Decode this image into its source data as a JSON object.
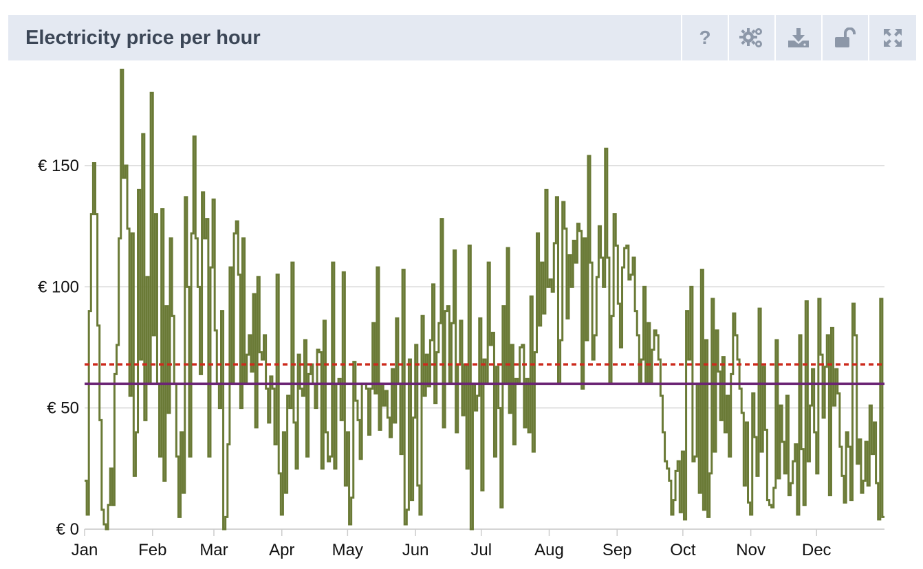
{
  "panel": {
    "title": "Electricity price per hour",
    "toolbar": {
      "help_label": "?",
      "buttons": [
        "help-icon",
        "settings-gears-icon",
        "download-icon",
        "unlock-icon",
        "expand-icon"
      ]
    }
  },
  "colors": {
    "header_bg": "#e4e9f2",
    "title": "#3b4656",
    "icon": "#8c97a8",
    "series_price": "#6a7a36",
    "series_average": "#6b2474",
    "series_reference": "#cc2a1c",
    "grid": "#d6d6d6"
  },
  "chart_data": {
    "type": "line",
    "step": true,
    "title": "",
    "xlabel": "",
    "ylabel": "",
    "unit_prefix": "€ ",
    "ylim": [
      0,
      190
    ],
    "yticks": [
      0,
      50,
      100,
      150
    ],
    "ytick_labels": [
      "€ 0",
      "€ 50",
      "€ 100",
      "€ 150"
    ],
    "grid": true,
    "x_range_days": [
      0,
      365
    ],
    "x_ticks": [
      {
        "label": "Jan",
        "day": 0
      },
      {
        "label": "Feb",
        "day": 31
      },
      {
        "label": "Mar",
        "day": 59
      },
      {
        "label": "Apr",
        "day": 90
      },
      {
        "label": "May",
        "day": 120
      },
      {
        "label": "Jun",
        "day": 151
      },
      {
        "label": "Jul",
        "day": 181
      },
      {
        "label": "Aug",
        "day": 212
      },
      {
        "label": "Sep",
        "day": 243
      },
      {
        "label": "Oct",
        "day": 273
      },
      {
        "label": "Nov",
        "day": 304
      },
      {
        "label": "Dec",
        "day": 334
      }
    ],
    "series": [
      {
        "style": "step",
        "values": [
          20,
          6,
          90,
          130,
          151,
          130,
          84,
          45,
          8,
          2,
          0,
          10,
          25,
          10,
          64,
          76,
          120,
          190,
          145,
          150,
          124,
          55,
          122,
          22,
          40,
          140,
          70,
          163,
          45,
          104,
          60,
          180,
          80,
          130,
          60,
          30,
          132,
          20,
          92,
          48,
          120,
          88,
          60,
          30,
          5,
          40,
          15,
          137,
          100,
          30,
          122,
          162,
          120,
          100,
          64,
          139,
          120,
          128,
          30,
          108,
          136,
          82,
          60,
          50,
          90,
          0,
          5,
          35,
          108,
          60,
          122,
          127,
          105,
          50,
          120,
          60,
          72,
          80,
          65,
          97,
          42,
          104,
          73,
          70,
          80,
          58,
          44,
          63,
          58,
          35,
          105,
          23,
          6,
          40,
          15,
          55,
          50,
          110,
          44,
          25,
          72,
          58,
          55,
          78,
          30,
          64,
          68,
          60,
          50,
          74,
          73,
          25,
          86,
          40,
          28,
          30,
          110,
          25,
          60,
          62,
          45,
          106,
          18,
          40,
          2,
          13,
          69,
          53,
          45,
          29,
          60,
          60,
          58,
          39,
          58,
          85,
          56,
          108,
          41,
          60,
          51,
          57,
          46,
          38,
          66,
          44,
          87,
          60,
          31,
          107,
          2,
          8,
          70,
          12,
          46,
          76,
          18,
          6,
          88,
          55,
          72,
          59,
          78,
          101,
          52,
          73,
          85,
          128,
          42,
          90,
          92,
          60,
          85,
          115,
          40,
          68,
          86,
          47,
          68,
          25,
          117,
          0,
          60,
          49,
          55,
          87,
          16,
          70,
          60,
          110,
          76,
          81,
          30,
          67,
          50,
          9,
          92,
          60,
          116,
          48,
          76,
          35,
          62,
          60,
          75,
          76,
          42,
          62,
          40,
          96,
          32,
          73,
          122,
          84,
          110,
          89,
          140,
          100,
          103,
          98,
          118,
          137,
          60,
          78,
          135,
          124,
          87,
          113,
          100,
          119,
          110,
          126,
          123,
          58,
          120,
          78,
          154,
          110,
          70,
          80,
          104,
          125,
          112,
          100,
          157,
          112,
          60,
          88,
          130,
          117,
          93,
          75,
          108,
          116,
          117,
          103,
          105,
          112,
          90,
          80,
          60,
          70,
          100,
          60,
          85,
          60,
          74,
          82,
          80,
          70,
          55,
          40,
          28,
          25,
          20,
          6,
          12,
          24,
          28,
          7,
          32,
          4,
          90,
          70,
          100,
          28,
          30,
          60,
          15,
          107,
          8,
          78,
          5,
          23,
          95,
          32,
          82,
          65,
          45,
          71,
          40,
          55,
          30,
          64,
          89,
          80,
          70,
          58,
          48,
          18,
          44,
          11,
          6,
          56,
          38,
          22,
          91,
          32,
          67,
          41,
          12,
          10,
          9,
          17,
          78,
          21,
          51,
          36,
          23,
          55,
          14,
          19,
          28,
          35,
          6,
          80,
          33,
          10,
          94,
          28,
          51,
          66,
          40,
          23,
          95,
          72,
          46,
          67,
          80,
          14,
          83,
          51,
          66,
          56,
          34,
          22,
          11,
          40,
          34,
          12,
          93,
          80,
          27,
          37,
          15,
          20,
          36,
          18,
          51,
          31,
          44,
          19,
          4,
          95,
          5
        ]
      },
      {
        "style": "solid-horizontal",
        "value": 60
      },
      {
        "style": "dashed-horizontal",
        "value": 68
      }
    ]
  }
}
